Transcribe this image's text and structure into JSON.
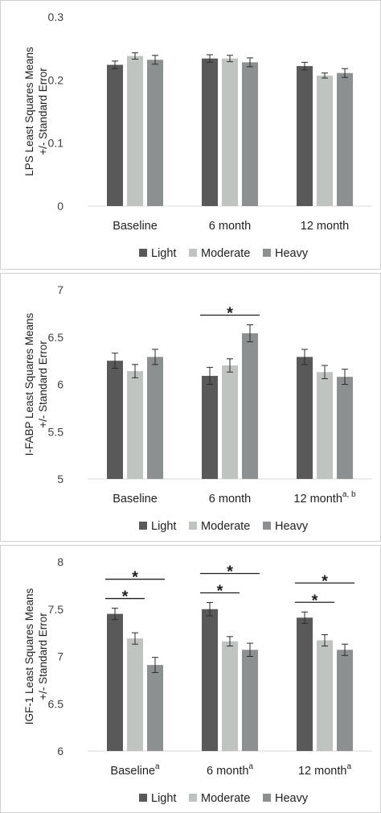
{
  "colors": {
    "Light": "#595959",
    "Moderate": "#bfc4c1",
    "Heavy": "#8c9090"
  },
  "chart_data": [
    {
      "type": "bar",
      "title": "",
      "ylabel_lines": [
        "LPS  Least Squares Means",
        "+/- Standard Error"
      ],
      "categories": [
        {
          "label": "Baseline",
          "sup": ""
        },
        {
          "label": "6 month",
          "sup": ""
        },
        {
          "label": "12 month",
          "sup": ""
        }
      ],
      "ylim": [
        0,
        0.3
      ],
      "yticks": [
        0,
        0.1,
        0.2,
        0.3
      ],
      "ytick_labels": [
        "0",
        "0.1",
        "0.2",
        "0.3"
      ],
      "series": [
        {
          "name": "Light",
          "values": [
            0.224,
            0.234,
            0.222
          ],
          "errors": [
            0.006,
            0.006,
            0.006
          ]
        },
        {
          "name": "Moderate",
          "values": [
            0.238,
            0.234,
            0.207
          ],
          "errors": [
            0.005,
            0.005,
            0.004
          ]
        },
        {
          "name": "Heavy",
          "values": [
            0.232,
            0.228,
            0.211
          ],
          "errors": [
            0.007,
            0.007,
            0.007
          ]
        }
      ],
      "significance": []
    },
    {
      "type": "bar",
      "title": "",
      "ylabel_lines": [
        "I-FABP  Least Squares Means",
        "+/- Standard Error"
      ],
      "categories": [
        {
          "label": "Baseline",
          "sup": ""
        },
        {
          "label": "6 month",
          "sup": ""
        },
        {
          "label": "12 month",
          "sup": "a, b"
        }
      ],
      "ylim": [
        5,
        7
      ],
      "yticks": [
        5,
        5.5,
        6,
        6.5,
        7
      ],
      "ytick_labels": [
        "5",
        "5.5",
        "6",
        "6.5",
        "7"
      ],
      "series": [
        {
          "name": "Light",
          "values": [
            6.25,
            6.09,
            6.29
          ],
          "errors": [
            0.08,
            0.09,
            0.08
          ]
        },
        {
          "name": "Moderate",
          "values": [
            6.14,
            6.2,
            6.13
          ],
          "errors": [
            0.07,
            0.07,
            0.07
          ]
        },
        {
          "name": "Heavy",
          "values": [
            6.29,
            6.54,
            6.08
          ],
          "errors": [
            0.08,
            0.09,
            0.08
          ]
        }
      ],
      "significance": [
        {
          "category": 1,
          "from": "Light",
          "to": "Heavy",
          "level": 1,
          "label": "*"
        }
      ]
    },
    {
      "type": "bar",
      "title": "",
      "ylabel_lines": [
        "IGF-1  Least Squares Means",
        "+/- Standard Error"
      ],
      "categories": [
        {
          "label": "Baseline",
          "sup": "a"
        },
        {
          "label": "6 month",
          "sup": "a"
        },
        {
          "label": "12 month",
          "sup": "a"
        }
      ],
      "ylim": [
        6,
        8
      ],
      "yticks": [
        6,
        6.5,
        7,
        7.5,
        8
      ],
      "ytick_labels": [
        "6",
        "6.5",
        "7",
        "7.5",
        "8"
      ],
      "series": [
        {
          "name": "Light",
          "values": [
            7.45,
            7.5,
            7.41
          ],
          "errors": [
            0.06,
            0.07,
            0.06
          ]
        },
        {
          "name": "Moderate",
          "values": [
            7.19,
            7.16,
            7.17
          ],
          "errors": [
            0.06,
            0.05,
            0.06
          ]
        },
        {
          "name": "Heavy",
          "values": [
            6.91,
            7.07,
            7.07
          ],
          "errors": [
            0.08,
            0.07,
            0.06
          ]
        }
      ],
      "significance": [
        {
          "category": 0,
          "from": "Light",
          "to": "Heavy",
          "level": 2,
          "label": "*"
        },
        {
          "category": 0,
          "from": "Light",
          "to": "Moderate",
          "level": 1,
          "label": "*"
        },
        {
          "category": 1,
          "from": "Light",
          "to": "Heavy",
          "level": 2,
          "label": "*"
        },
        {
          "category": 1,
          "from": "Light",
          "to": "Moderate",
          "level": 1,
          "label": "*"
        },
        {
          "category": 2,
          "from": "Light",
          "to": "Heavy",
          "level": 2,
          "label": "*"
        },
        {
          "category": 2,
          "from": "Light",
          "to": "Moderate",
          "level": 1,
          "label": "*"
        }
      ]
    }
  ]
}
